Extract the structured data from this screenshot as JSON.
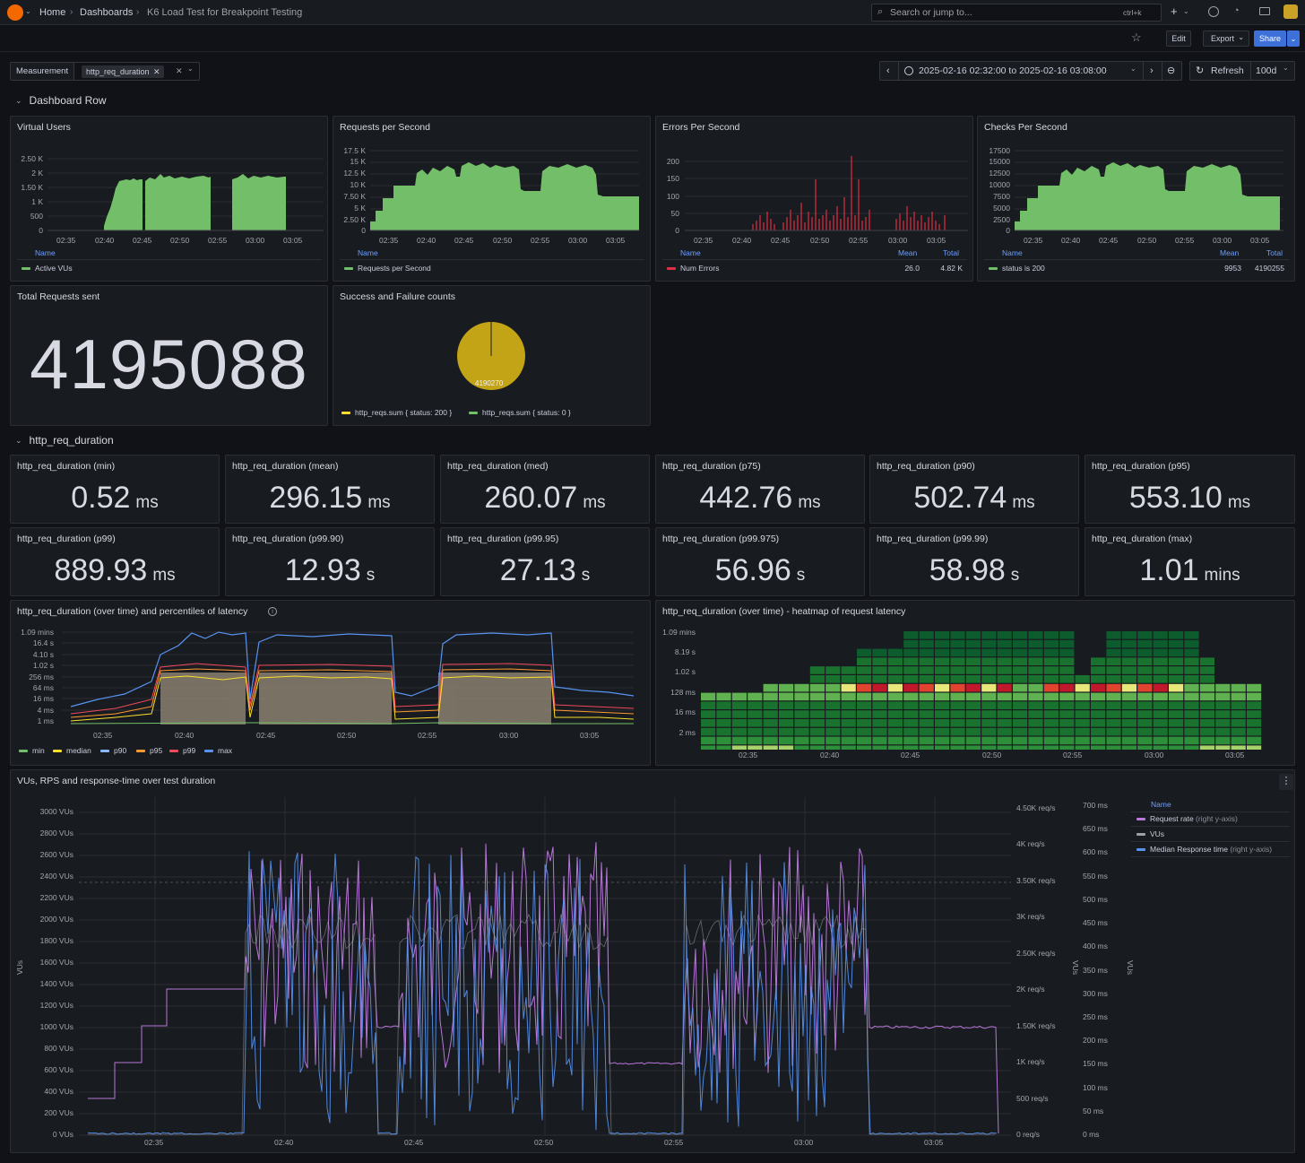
{
  "nav": {
    "breadcrumbs": [
      "Home",
      "Dashboards",
      "K6 Load Test for Breakpoint Testing"
    ],
    "search_placeholder": "Search or jump to...",
    "shortcut": "ctrl+k",
    "plus": "+"
  },
  "toolbar": {
    "edit": "Edit",
    "export": "Export",
    "share": "Share"
  },
  "filters": {
    "measurement_label": "Measurement",
    "measurement_value": "http_req_duration",
    "time_range": "2025-02-16 02:32:00 to 2025-02-16 03:08:00",
    "refresh": "Refresh",
    "interval": "100d"
  },
  "rows": {
    "row1": "Dashboard Row",
    "row2": "http_req_duration"
  },
  "time_ticks": [
    "02:35",
    "02:40",
    "02:45",
    "02:50",
    "02:55",
    "03:00",
    "03:05"
  ],
  "panels": {
    "vus": {
      "title": "Virtual Users",
      "yticks": [
        "2.50 K",
        "2 K",
        "1.50 K",
        "1 K",
        "500",
        "0"
      ],
      "legend_header": "Name",
      "legend": "Active VUs",
      "color": "#73bf69"
    },
    "rps": {
      "title": "Requests per Second",
      "yticks": [
        "17.5 K",
        "15 K",
        "12.5 K",
        "10 K",
        "7.50 K",
        "5 K",
        "2.50 K",
        "0"
      ],
      "legend_header": "Name",
      "legend": "Requests per Second",
      "color": "#73bf69"
    },
    "eps": {
      "title": "Errors Per Second",
      "yticks": [
        "200",
        "150",
        "100",
        "50",
        "0"
      ],
      "legend_header": "Name",
      "col_mean": "Mean",
      "col_total": "Total",
      "legend": "Num Errors",
      "mean": "26.0",
      "total": "4.82 K",
      "color": "#e02f44"
    },
    "cps": {
      "title": "Checks Per Second",
      "yticks": [
        "17500",
        "15000",
        "12500",
        "10000",
        "7500",
        "5000",
        "2500",
        "0"
      ],
      "legend_header": "Name",
      "col_mean": "Mean",
      "col_total": "Total",
      "legend": "status is 200",
      "mean": "9953",
      "total": "4190255",
      "color": "#73bf69"
    },
    "total": {
      "title": "Total Requests sent",
      "value": "4195088"
    },
    "pie": {
      "title": "Success and Failure counts",
      "label": "4190270",
      "legend1": "http_reqs.sum { status: 200 }",
      "legend2": "http_reqs.sum { status: 0 }",
      "color1": "#fade2a",
      "color2": "#73bf69"
    },
    "latency": {
      "title": "http_req_duration (over time) and percentiles of latency",
      "yticks": [
        "1.09 mins",
        "16.4 s",
        "4.10 s",
        "1.02 s",
        "256 ms",
        "64 ms",
        "16 ms",
        "4 ms",
        "1 ms"
      ],
      "legend": [
        {
          "name": "min",
          "color": "#73bf69"
        },
        {
          "name": "median",
          "color": "#fade2a"
        },
        {
          "name": "p90",
          "color": "#8ab8ff"
        },
        {
          "name": "p95",
          "color": "#ff9830"
        },
        {
          "name": "p99",
          "color": "#f2495c"
        },
        {
          "name": "max",
          "color": "#5794f2"
        }
      ]
    },
    "heatmap": {
      "title": "http_req_duration (over time) - heatmap of request latency",
      "yticks": [
        "1.09 mins",
        "8.19 s",
        "1.02 s",
        "128 ms",
        "16 ms",
        "2 ms"
      ]
    },
    "combined": {
      "title": "VUs, RPS and response-time over test duration",
      "left_ticks": [
        "3000 VUs",
        "2800 VUs",
        "2600 VUs",
        "2400 VUs",
        "2200 VUs",
        "2000 VUs",
        "1800 VUs",
        "1600 VUs",
        "1400 VUs",
        "1200 VUs",
        "1000 VUs",
        "800 VUs",
        "600 VUs",
        "400 VUs",
        "200 VUs",
        "0 VUs"
      ],
      "rps_ticks": [
        "4.50K req/s",
        "4K req/s",
        "3.50K req/s",
        "3K req/s",
        "2.50K req/s",
        "2K req/s",
        "1.50K req/s",
        "1K req/s",
        "500 req/s",
        "0 req/s"
      ],
      "ms_ticks": [
        "700 ms",
        "650 ms",
        "600 ms",
        "550 ms",
        "500 ms",
        "450 ms",
        "400 ms",
        "350 ms",
        "300 ms",
        "250 ms",
        "200 ms",
        "150 ms",
        "100 ms",
        "50 ms",
        "0 ms"
      ],
      "axis_label_left": "VUs",
      "axis_label_mid": "VUs",
      "axis_label_right": "VUs",
      "legend_header": "Name",
      "legend": [
        {
          "name": "Request rate",
          "note": "(right y-axis)",
          "color": "#b877d9"
        },
        {
          "name": "VUs",
          "note": "",
          "color": "#9fa1a8"
        },
        {
          "name": "Median Response time",
          "note": "(right y-axis)",
          "color": "#5794f2"
        }
      ]
    }
  },
  "stats": [
    {
      "title": "http_req_duration (min)",
      "value": "0.52",
      "unit": "ms"
    },
    {
      "title": "http_req_duration (mean)",
      "value": "296.15",
      "unit": "ms"
    },
    {
      "title": "http_req_duration (med)",
      "value": "260.07",
      "unit": "ms"
    },
    {
      "title": "http_req_duration (p75)",
      "value": "442.76",
      "unit": "ms"
    },
    {
      "title": "http_req_duration (p90)",
      "value": "502.74",
      "unit": "ms"
    },
    {
      "title": "http_req_duration (p95)",
      "value": "553.10",
      "unit": "ms"
    },
    {
      "title": "http_req_duration (p99)",
      "value": "889.93",
      "unit": "ms"
    },
    {
      "title": "http_req_duration (p99.90)",
      "value": "12.93",
      "unit": "s"
    },
    {
      "title": "http_req_duration (p99.95)",
      "value": "27.13",
      "unit": "s"
    },
    {
      "title": "http_req_duration (p99.975)",
      "value": "56.96",
      "unit": "s"
    },
    {
      "title": "http_req_duration (p99.99)",
      "value": "58.98",
      "unit": "s"
    },
    {
      "title": "http_req_duration (max)",
      "value": "1.01",
      "unit": "mins"
    }
  ]
}
